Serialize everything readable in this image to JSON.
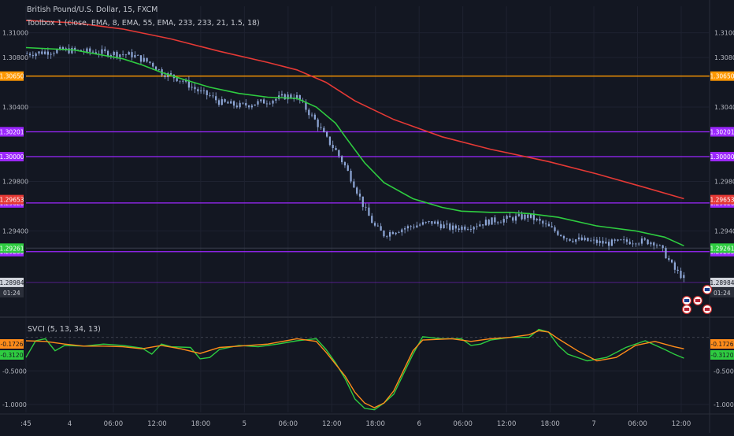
{
  "header": {
    "symbol": "British Pound/U.S. Dollar, 15, FXCM",
    "indicator": "Toolbox 1 (close, EMA, 8, EMA, 55, EMA, 233, 233, 21, 1.5, 18)"
  },
  "oscillator": {
    "title": "SVCI (5, 13, 34, 13)"
  },
  "countdown": "01:24",
  "colors": {
    "background": "#131722",
    "candle": "#8fa8d8",
    "ema55": "#2ecc40",
    "ema233": "#e53935",
    "level_orange": "#ff9800",
    "level_purple": "#9c27ff",
    "osc_fast": "#2ecc40",
    "osc_slow": "#ff8c1a",
    "price_tag_gray": "#d1d4dc"
  },
  "icons": [
    "flag-uk-icon",
    "flag-us-icon",
    "event-marker-icon"
  ],
  "chart_data": [
    {
      "type": "candlestick",
      "title": "British Pound/U.S. Dollar, 15, FXCM",
      "y_ticks": [
        "1.31000",
        "1.30800",
        "1.30400",
        "1.29800",
        "1.29400"
      ],
      "x_ticks": [
        ":45",
        "4",
        "06:00",
        "12:00",
        "18:00",
        "5",
        "06:00",
        "12:00",
        "18:00",
        "6",
        "06:00",
        "12:00",
        "18:00",
        "7",
        "06:00",
        "12:00"
      ],
      "ylim": [
        1.2885,
        1.3115
      ],
      "close_path": [
        [
          0,
          1.3083
        ],
        [
          8,
          1.3086
        ],
        [
          16,
          1.3084
        ],
        [
          22,
          1.3082
        ],
        [
          26,
          1.3075
        ],
        [
          28,
          1.3068
        ],
        [
          32,
          1.3062
        ],
        [
          36,
          1.3052
        ],
        [
          38,
          1.3049
        ],
        [
          40,
          1.3044
        ],
        [
          44,
          1.3041
        ],
        [
          46,
          1.3042
        ],
        [
          50,
          1.3045
        ],
        [
          54,
          1.3049
        ],
        [
          56,
          1.3048
        ],
        [
          58,
          1.3038
        ],
        [
          60,
          1.3028
        ],
        [
          62,
          1.3015
        ],
        [
          64,
          1.3005
        ],
        [
          66,
          1.2992
        ],
        [
          68,
          1.2976
        ],
        [
          70,
          1.2958
        ],
        [
          72,
          1.2944
        ],
        [
          74,
          1.2937
        ],
        [
          76,
          1.294
        ],
        [
          80,
          1.2944
        ],
        [
          84,
          1.2947
        ],
        [
          88,
          1.2942
        ],
        [
          92,
          1.2944
        ],
        [
          96,
          1.2948
        ],
        [
          100,
          1.295
        ],
        [
          104,
          1.2952
        ],
        [
          108,
          1.2943
        ],
        [
          112,
          1.2934
        ],
        [
          116,
          1.2932
        ],
        [
          120,
          1.293
        ],
        [
          126,
          1.2932
        ],
        [
          130,
          1.2931
        ],
        [
          132,
          1.2922
        ],
        [
          134,
          1.2909
        ],
        [
          136,
          1.2902
        ]
      ],
      "levels": [
        {
          "label": "1.30650",
          "value": 1.3065,
          "color": "#ff9800"
        },
        {
          "label": "1.30200",
          "value": 1.302,
          "color": "#9c27ff"
        },
        {
          "label": "1.30201",
          "value": 1.30201,
          "color": "#9c27ff"
        },
        {
          "label": "1.30000",
          "value": 1.3,
          "color": "#9c27ff"
        },
        {
          "label": "1.29626",
          "value": 1.29626,
          "color": "#9c27ff"
        },
        {
          "label": "1.29233",
          "value": 1.29233,
          "color": "#9c27ff"
        }
      ],
      "price_tags": [
        {
          "label": "1.29653",
          "value": 1.29653,
          "color": "#e53935"
        },
        {
          "label": "1.29261",
          "value": 1.29261,
          "color": "#2ecc40"
        },
        {
          "label": "1.28984",
          "value": 1.28984,
          "color": "#d1d4dc"
        }
      ],
      "series": [
        {
          "name": "EMA 55",
          "color": "#2ecc40",
          "points": [
            [
              0,
              1.3088
            ],
            [
              10,
              1.3086
            ],
            [
              20,
              1.3079
            ],
            [
              24,
              1.3074
            ],
            [
              28,
              1.3068
            ],
            [
              32,
              1.3063
            ],
            [
              38,
              1.3056
            ],
            [
              44,
              1.3051
            ],
            [
              50,
              1.3048
            ],
            [
              56,
              1.3047
            ],
            [
              60,
              1.304
            ],
            [
              64,
              1.3027
            ],
            [
              66,
              1.3016
            ],
            [
              70,
              1.2995
            ],
            [
              74,
              1.2979
            ],
            [
              80,
              1.2966
            ],
            [
              86,
              1.2959
            ],
            [
              90,
              1.2956
            ],
            [
              96,
              1.2955
            ],
            [
              100,
              1.2955
            ],
            [
              104,
              1.2954
            ],
            [
              110,
              1.2951
            ],
            [
              118,
              1.2944
            ],
            [
              126,
              1.294
            ],
            [
              132,
              1.2935
            ],
            [
              136,
              1.2928
            ]
          ]
        },
        {
          "name": "EMA 233",
          "color": "#e53935",
          "points": [
            [
              0,
              1.311
            ],
            [
              10,
              1.3108
            ],
            [
              20,
              1.3103
            ],
            [
              30,
              1.3095
            ],
            [
              40,
              1.3085
            ],
            [
              50,
              1.3076
            ],
            [
              56,
              1.307
            ],
            [
              62,
              1.306
            ],
            [
              68,
              1.3045
            ],
            [
              76,
              1.303
            ],
            [
              86,
              1.3016
            ],
            [
              96,
              1.3006
            ],
            [
              108,
              1.2996
            ],
            [
              118,
              1.2986
            ],
            [
              128,
              1.2975
            ],
            [
              136,
              1.2966
            ]
          ]
        }
      ]
    },
    {
      "type": "line",
      "title": "SVCI (5, 13, 34, 13)",
      "y_ticks": [
        "-0.5000",
        "-1.0000"
      ],
      "ylim": [
        -1.12,
        0.22
      ],
      "last_values": [
        {
          "label": "-0.1726",
          "value": -0.1726,
          "color": "#ff8c1a"
        },
        {
          "label": "-0.3120",
          "value": -0.312,
          "color": "#2ecc40"
        }
      ],
      "series": [
        {
          "name": "SVCI fast",
          "color": "#2ecc40",
          "points": [
            [
              0,
              -0.3
            ],
            [
              2,
              -0.05
            ],
            [
              4,
              -0.02
            ],
            [
              6,
              -0.2
            ],
            [
              8,
              -0.12
            ],
            [
              12,
              -0.13
            ],
            [
              16,
              -0.1
            ],
            [
              20,
              -0.12
            ],
            [
              24,
              -0.16
            ],
            [
              26,
              -0.25
            ],
            [
              28,
              -0.1
            ],
            [
              30,
              -0.14
            ],
            [
              34,
              -0.15
            ],
            [
              36,
              -0.32
            ],
            [
              38,
              -0.3
            ],
            [
              40,
              -0.18
            ],
            [
              44,
              -0.12
            ],
            [
              48,
              -0.14
            ],
            [
              52,
              -0.1
            ],
            [
              56,
              -0.05
            ],
            [
              60,
              -0.02
            ],
            [
              62,
              -0.18
            ],
            [
              64,
              -0.38
            ],
            [
              66,
              -0.62
            ],
            [
              68,
              -0.92
            ],
            [
              70,
              -1.06
            ],
            [
              72,
              -1.08
            ],
            [
              74,
              -0.98
            ],
            [
              76,
              -0.85
            ],
            [
              78,
              -0.55
            ],
            [
              80,
              -0.25
            ],
            [
              82,
              0.01
            ],
            [
              86,
              -0.02
            ],
            [
              90,
              -0.02
            ],
            [
              92,
              -0.12
            ],
            [
              94,
              -0.1
            ],
            [
              96,
              -0.04
            ],
            [
              100,
              0.0
            ],
            [
              104,
              0.0
            ],
            [
              106,
              0.12
            ],
            [
              108,
              0.08
            ],
            [
              110,
              -0.12
            ],
            [
              112,
              -0.25
            ],
            [
              116,
              -0.35
            ],
            [
              120,
              -0.3
            ],
            [
              124,
              -0.15
            ],
            [
              128,
              -0.05
            ],
            [
              132,
              -0.18
            ],
            [
              134,
              -0.25
            ],
            [
              136,
              -0.31
            ]
          ]
        },
        {
          "name": "SVCI slow",
          "color": "#ff8c1a",
          "points": [
            [
              0,
              -0.05
            ],
            [
              4,
              -0.06
            ],
            [
              8,
              -0.1
            ],
            [
              12,
              -0.13
            ],
            [
              16,
              -0.13
            ],
            [
              20,
              -0.14
            ],
            [
              24,
              -0.17
            ],
            [
              28,
              -0.12
            ],
            [
              32,
              -0.17
            ],
            [
              36,
              -0.24
            ],
            [
              40,
              -0.15
            ],
            [
              44,
              -0.13
            ],
            [
              50,
              -0.1
            ],
            [
              56,
              -0.02
            ],
            [
              60,
              -0.06
            ],
            [
              62,
              -0.22
            ],
            [
              64,
              -0.4
            ],
            [
              66,
              -0.58
            ],
            [
              68,
              -0.82
            ],
            [
              70,
              -0.98
            ],
            [
              72,
              -1.05
            ],
            [
              74,
              -0.98
            ],
            [
              76,
              -0.8
            ],
            [
              78,
              -0.5
            ],
            [
              80,
              -0.2
            ],
            [
              82,
              -0.04
            ],
            [
              88,
              -0.02
            ],
            [
              92,
              -0.06
            ],
            [
              96,
              -0.02
            ],
            [
              100,
              0.0
            ],
            [
              104,
              0.04
            ],
            [
              106,
              0.1
            ],
            [
              108,
              0.08
            ],
            [
              110,
              -0.02
            ],
            [
              114,
              -0.2
            ],
            [
              118,
              -0.35
            ],
            [
              122,
              -0.3
            ],
            [
              126,
              -0.12
            ],
            [
              130,
              -0.06
            ],
            [
              134,
              -0.14
            ],
            [
              136,
              -0.17
            ]
          ]
        }
      ]
    }
  ]
}
